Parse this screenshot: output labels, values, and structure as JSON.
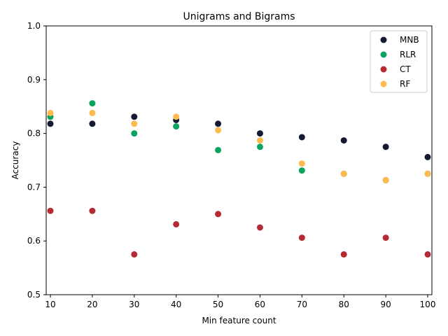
{
  "chart_data": {
    "type": "scatter",
    "title": "Unigrams and Bigrams",
    "xlabel": "Min feature count",
    "ylabel": "Accuracy",
    "xlim": [
      9,
      101
    ],
    "ylim": [
      0.5,
      1.0
    ],
    "xticks": [
      10,
      20,
      30,
      40,
      50,
      60,
      70,
      80,
      90,
      100
    ],
    "yticks": [
      0.5,
      0.6,
      0.7,
      0.8,
      0.9,
      1.0
    ],
    "ytick_labels": [
      "0.5",
      "0.6",
      "0.7",
      "0.8",
      "0.9",
      "1.0"
    ],
    "grid": false,
    "legend_position": "top-right",
    "series": [
      {
        "name": "MNB",
        "color": "#151a33",
        "x": [
          10,
          20,
          30,
          40,
          50,
          60,
          70,
          80,
          90,
          100
        ],
        "y": [
          0.818,
          0.818,
          0.831,
          0.825,
          0.818,
          0.8,
          0.793,
          0.787,
          0.775,
          0.756
        ]
      },
      {
        "name": "RLR",
        "color": "#0ca35f",
        "x": [
          10,
          20,
          30,
          40,
          50,
          60,
          70,
          80,
          90,
          100
        ],
        "y": [
          0.831,
          0.856,
          0.8,
          0.813,
          0.769,
          0.775,
          0.731,
          0.725,
          0.713,
          0.725
        ]
      },
      {
        "name": "CT",
        "color": "#b52b34",
        "x": [
          10,
          20,
          30,
          40,
          50,
          60,
          70,
          80,
          90,
          100
        ],
        "y": [
          0.656,
          0.656,
          0.575,
          0.631,
          0.65,
          0.625,
          0.606,
          0.575,
          0.606,
          0.575
        ]
      },
      {
        "name": "RF",
        "color": "#fdbb4f",
        "x": [
          10,
          20,
          30,
          40,
          50,
          60,
          70,
          80,
          90,
          100
        ],
        "y": [
          0.838,
          0.838,
          0.818,
          0.831,
          0.806,
          0.787,
          0.744,
          0.725,
          0.713,
          0.725
        ]
      }
    ]
  }
}
